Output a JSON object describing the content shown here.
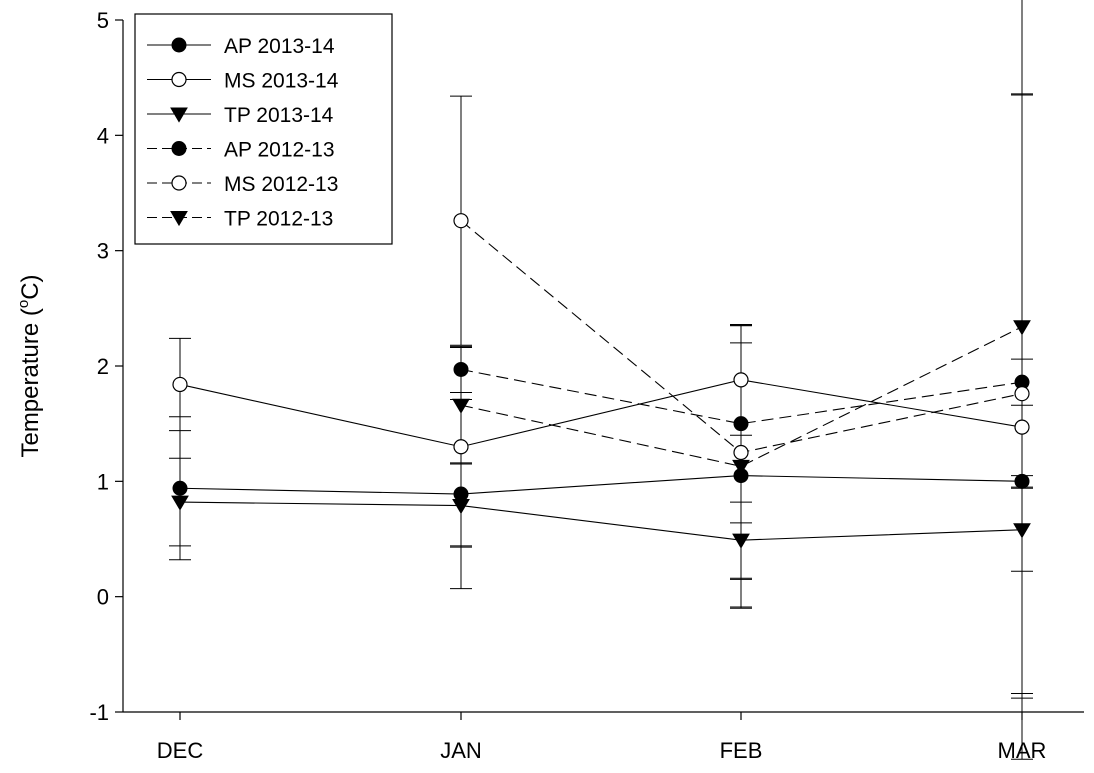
{
  "chart_data": {
    "type": "line",
    "title": "",
    "xlabel": "",
    "ylabel": {
      "prefix": "Temperature (",
      "sup": "o",
      "suffix": "C)"
    },
    "categories": [
      "DEC",
      "JAN",
      "FEB",
      "MAR"
    ],
    "ylim": [
      -1,
      5
    ],
    "yticks": [
      -1,
      0,
      1,
      2,
      3,
      4,
      5
    ],
    "grid": false,
    "legend_position": "top-left",
    "series": [
      {
        "name": "AP 2013-14",
        "marker": "filled-circle",
        "line": "solid",
        "values": [
          0.94,
          0.89,
          1.05,
          1.0
        ],
        "errors": [
          0.62,
          0.82,
          1.15,
          0.05
        ]
      },
      {
        "name": "MS 2013-14",
        "marker": "open-circle",
        "line": "solid",
        "values": [
          1.84,
          1.3,
          1.88,
          1.47
        ],
        "errors": [
          0.4,
          0.86,
          0.48,
          2.88
        ]
      },
      {
        "name": "TP 2013-14",
        "marker": "filled-triangle",
        "line": "solid",
        "values": [
          0.82,
          0.79,
          0.49,
          0.58
        ],
        "errors": [
          0.38,
          0.36,
          0.33,
          0.36
        ]
      },
      {
        "name": "AP 2012-13",
        "marker": "filled-circle",
        "line": "dashed",
        "values": [
          null,
          1.97,
          1.5,
          1.86
        ],
        "errors": [
          null,
          0.2,
          0.86,
          0.2
        ]
      },
      {
        "name": "MS 2012-13",
        "marker": "open-circle",
        "line": "dashed",
        "values": [
          null,
          3.26,
          1.25,
          1.76
        ],
        "errors": [
          null,
          1.08,
          1.1,
          2.6
        ]
      },
      {
        "name": "TP 2012-13",
        "marker": "filled-triangle",
        "line": "dashed",
        "values": [
          null,
          1.66,
          1.13,
          2.34
        ],
        "errors": [
          null,
          0.5,
          1.22,
          3.22
        ]
      }
    ]
  }
}
